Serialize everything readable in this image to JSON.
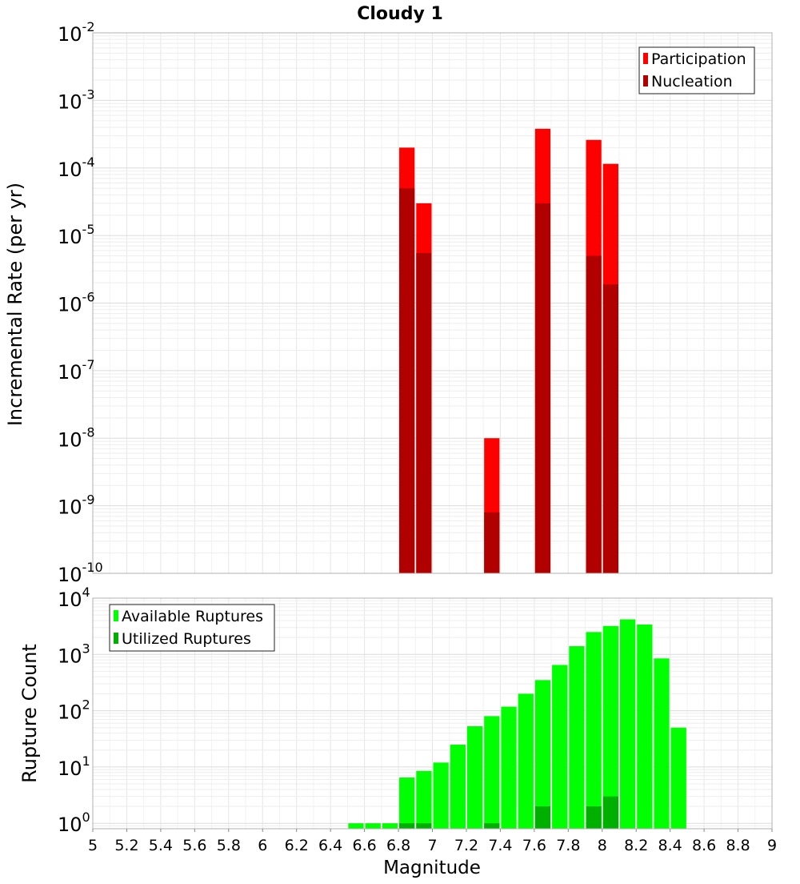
{
  "title": "Cloudy 1",
  "chart_data": [
    {
      "type": "bar",
      "panel": "rate",
      "ylabel": "Incremental Rate (per yr)",
      "yscale": "log",
      "ylim": [
        1e-10,
        0.01
      ],
      "y_tick_exponents": [
        "-10",
        "-9",
        "-8",
        "-7",
        "-6",
        "-5",
        "-4",
        "-3",
        "-2"
      ],
      "xlim": [
        5,
        9
      ],
      "bin_width": 0.1,
      "grid": true,
      "legend_position": "top-right",
      "series": [
        {
          "name": "Participation",
          "color": "#ff0000",
          "points": [
            {
              "x": 6.85,
              "y": 0.0002
            },
            {
              "x": 6.95,
              "y": 3e-05
            },
            {
              "x": 7.35,
              "y": 1e-08
            },
            {
              "x": 7.65,
              "y": 0.00038
            },
            {
              "x": 7.95,
              "y": 0.00026
            },
            {
              "x": 8.05,
              "y": 0.000115
            }
          ]
        },
        {
          "name": "Nucleation",
          "color": "#b00000",
          "points": [
            {
              "x": 6.85,
              "y": 5e-05
            },
            {
              "x": 6.95,
              "y": 5.5e-06
            },
            {
              "x": 7.35,
              "y": 8e-10
            },
            {
              "x": 7.65,
              "y": 3e-05
            },
            {
              "x": 7.95,
              "y": 5e-06
            },
            {
              "x": 8.05,
              "y": 1.9e-06
            }
          ]
        }
      ]
    },
    {
      "type": "bar",
      "panel": "count",
      "xlabel": "Magnitude",
      "ylabel": "Rupture Count",
      "yscale": "log",
      "ylim": [
        0.8,
        10000
      ],
      "y_tick_exponents": [
        "0",
        "1",
        "2",
        "3",
        "4"
      ],
      "xlim": [
        5,
        9
      ],
      "x_ticks": [
        "5",
        "5.2",
        "5.4",
        "5.6",
        "5.8",
        "6",
        "6.2",
        "6.4",
        "6.6",
        "6.8",
        "7",
        "7.2",
        "7.4",
        "7.6",
        "7.8",
        "8",
        "8.2",
        "8.4",
        "8.6",
        "8.8",
        "9"
      ],
      "bin_width": 0.1,
      "grid": true,
      "legend_position": "top-left",
      "series": [
        {
          "name": "Available Ruptures",
          "color": "#00ff00",
          "points": [
            {
              "x": 6.55,
              "y": 1
            },
            {
              "x": 6.65,
              "y": 1
            },
            {
              "x": 6.75,
              "y": 1
            },
            {
              "x": 6.85,
              "y": 6.5
            },
            {
              "x": 6.95,
              "y": 8.5
            },
            {
              "x": 7.05,
              "y": 12
            },
            {
              "x": 7.15,
              "y": 25
            },
            {
              "x": 7.25,
              "y": 53
            },
            {
              "x": 7.35,
              "y": 80
            },
            {
              "x": 7.45,
              "y": 118
            },
            {
              "x": 7.55,
              "y": 200
            },
            {
              "x": 7.65,
              "y": 350
            },
            {
              "x": 7.75,
              "y": 650
            },
            {
              "x": 7.85,
              "y": 1400
            },
            {
              "x": 7.95,
              "y": 2500
            },
            {
              "x": 8.05,
              "y": 3200
            },
            {
              "x": 8.15,
              "y": 4200
            },
            {
              "x": 8.25,
              "y": 3400
            },
            {
              "x": 8.35,
              "y": 850
            },
            {
              "x": 8.45,
              "y": 50
            }
          ]
        },
        {
          "name": "Utilized Ruptures",
          "color": "#00b000",
          "points": [
            {
              "x": 6.85,
              "y": 1
            },
            {
              "x": 6.95,
              "y": 1
            },
            {
              "x": 7.35,
              "y": 1
            },
            {
              "x": 7.65,
              "y": 2
            },
            {
              "x": 7.95,
              "y": 2
            },
            {
              "x": 8.05,
              "y": 3
            }
          ]
        }
      ]
    }
  ]
}
